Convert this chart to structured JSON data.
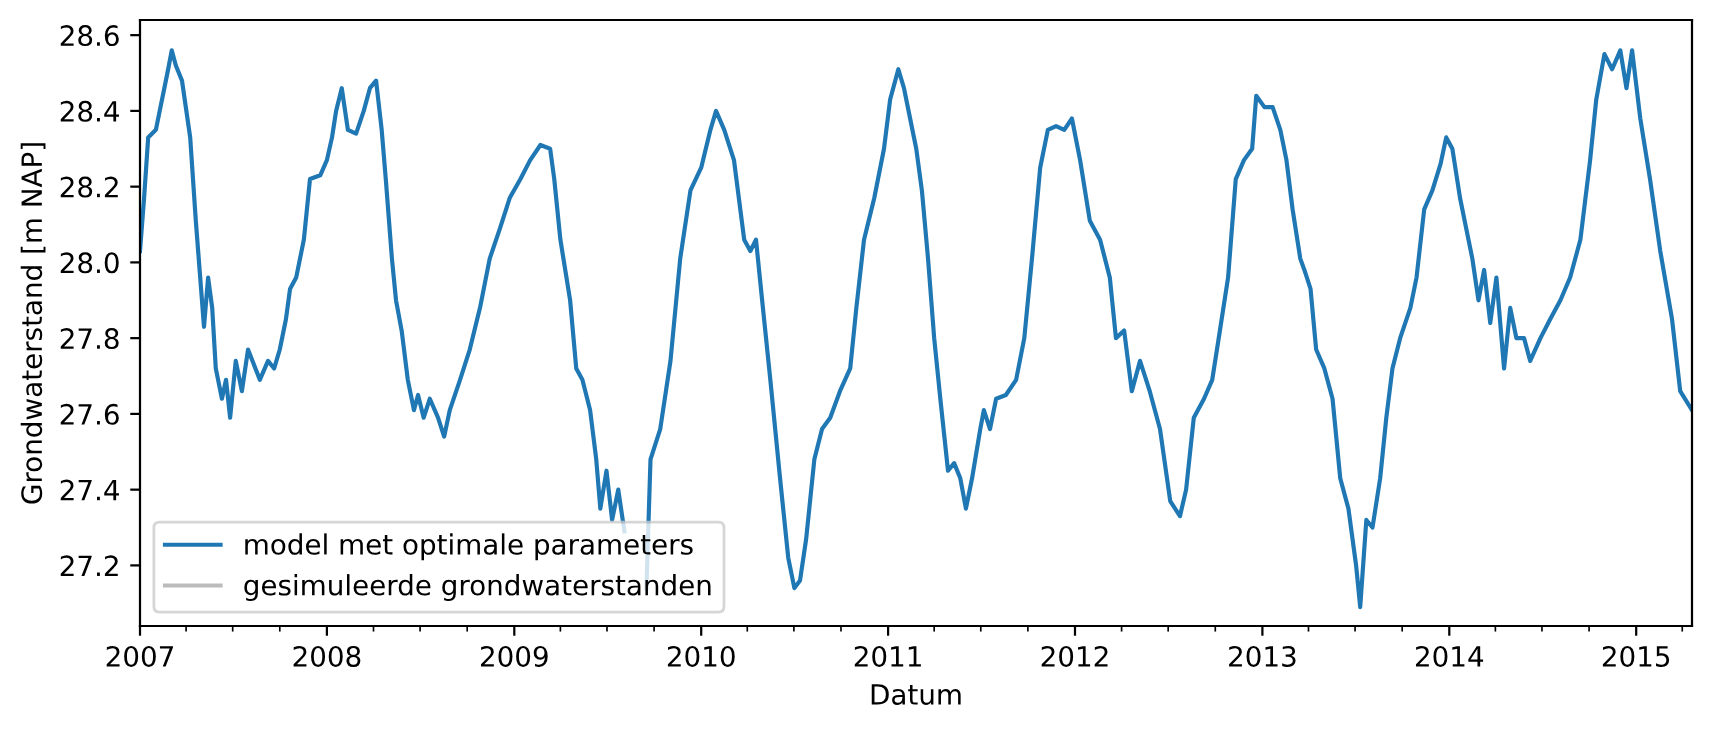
{
  "chart_data": {
    "type": "line",
    "xlabel": "Datum",
    "ylabel": "Grondwaterstand [m NAP]",
    "xlim": [
      "2007-01-01",
      "2015-04-20"
    ],
    "xticks": [
      "2007",
      "2008",
      "2009",
      "2010",
      "2011",
      "2012",
      "2013",
      "2014",
      "2015"
    ],
    "ylim": [
      27.04,
      28.64
    ],
    "yticks": [
      27.2,
      27.4,
      27.6,
      27.8,
      {
        "value": 28.0,
        "label": "28.0"
      },
      28.2,
      28.4,
      28.6
    ],
    "grid": false,
    "legend": "bottom left",
    "x": [
      "2007-01-01",
      "2007-01-09",
      "2007-01-17",
      "2007-02-01",
      "2007-02-25",
      "2007-03-04",
      "2007-03-12",
      "2007-03-24",
      "2007-04-09",
      "2007-04-20",
      "2007-05-06",
      "2007-05-14",
      "2007-05-22",
      "2007-05-29",
      "2007-06-10",
      "2007-06-18",
      "2007-06-26",
      "2007-07-07",
      "2007-07-19",
      "2007-07-31",
      "2007-08-23",
      "2007-09-08",
      "2007-09-20",
      "2007-10-01",
      "2007-10-13",
      "2007-10-21",
      "2007-11-02",
      "2007-11-17",
      "2007-11-29",
      "2007-12-19",
      "2008-01-01",
      "2008-01-11",
      "2008-01-19",
      "2008-01-30",
      "2008-02-11",
      "2008-02-27",
      "2008-03-13",
      "2008-03-25",
      "2008-04-06",
      "2008-04-17",
      "2008-04-25",
      "2008-05-07",
      "2008-05-15",
      "2008-05-26",
      "2008-06-07",
      "2008-06-19",
      "2008-06-27",
      "2008-07-08",
      "2008-07-20",
      "2008-08-05",
      "2008-08-17",
      "2008-08-28",
      "2008-09-17",
      "2008-10-06",
      "2008-10-26",
      "2008-11-14",
      "2008-12-04",
      "2008-12-23",
      "2009-01-13",
      "2009-02-01",
      "2009-02-21",
      "2009-03-12",
      "2009-03-20",
      "2009-04-01",
      "2009-04-20",
      "2009-05-02",
      "2009-05-14",
      "2009-05-29",
      "2009-06-10",
      "2009-06-18",
      "2009-06-30",
      "2009-07-11",
      "2009-07-23",
      "2009-08-04",
      "2009-08-20",
      "2009-09-04",
      "2009-09-16",
      "2009-09-24",
      "2009-10-13",
      "2009-11-02",
      "2009-11-21",
      "2009-12-11",
      "2010-01-01",
      "2010-01-19",
      "2010-01-30",
      "2010-02-15",
      "2010-03-06",
      "2010-03-26",
      "2010-04-07",
      "2010-04-18",
      "2010-04-30",
      "2010-05-16",
      "2010-06-04",
      "2010-06-20",
      "2010-07-02",
      "2010-07-13",
      "2010-07-25",
      "2010-08-10",
      "2010-08-25",
      "2010-09-10",
      "2010-09-29",
      "2010-10-19",
      "2010-10-31",
      "2010-11-15",
      "2010-12-05",
      "2010-12-24",
      "2011-01-05",
      "2011-01-21",
      "2011-02-01",
      "2011-02-13",
      "2011-02-25",
      "2011-03-08",
      "2011-03-20",
      "2011-04-01",
      "2011-04-13",
      "2011-04-28",
      "2011-05-10",
      "2011-05-22",
      "2011-06-02",
      "2011-06-14",
      "2011-06-30",
      "2011-07-07",
      "2011-07-19",
      "2011-07-31",
      "2011-08-19",
      "2011-09-08",
      "2011-09-24",
      "2011-10-09",
      "2011-10-25",
      "2011-11-09",
      "2011-11-25",
      "2011-12-11",
      "2011-12-26",
      "2012-01-11",
      "2012-01-30",
      "2012-02-19",
      "2012-03-09",
      "2012-03-21",
      "2012-04-06",
      "2012-04-21",
      "2012-05-07",
      "2012-05-26",
      "2012-06-15",
      "2012-07-05",
      "2012-07-24",
      "2012-08-05",
      "2012-08-20",
      "2012-09-09",
      "2012-09-25",
      "2012-10-10",
      "2012-10-26",
      "2012-11-10",
      "2012-11-26",
      "2012-12-12",
      "2012-12-20",
      "2013-01-05",
      "2013-01-21",
      "2013-02-05",
      "2013-02-17",
      "2013-03-01",
      "2013-03-16",
      "2013-03-24",
      "2013-04-05",
      "2013-04-16",
      "2013-05-02",
      "2013-05-18",
      "2013-06-02",
      "2013-06-18",
      "2013-06-26",
      "2013-07-03",
      "2013-07-11",
      "2013-07-23",
      "2013-08-04",
      "2013-08-19",
      "2013-08-31",
      "2013-09-12",
      "2013-09-27",
      "2013-10-17",
      "2013-10-29",
      "2013-11-13",
      "2013-11-29",
      "2013-12-15",
      "2013-12-26",
      "2014-01-07",
      "2014-01-22",
      "2014-02-03",
      "2014-02-15",
      "2014-02-27",
      "2014-03-10",
      "2014-03-22",
      "2014-04-03",
      "2014-04-18",
      "2014-04-30",
      "2014-05-12",
      "2014-05-27",
      "2014-06-08",
      "2014-06-28",
      "2014-07-17",
      "2014-08-06",
      "2014-08-25",
      "2014-09-14",
      "2014-10-03",
      "2014-10-15",
      "2014-10-31",
      "2014-11-15",
      "2014-12-01",
      "2014-12-13",
      "2014-12-24",
      "2015-01-09",
      "2015-01-28",
      "2015-02-17",
      "2015-03-12",
      "2015-03-28",
      "2015-04-20"
    ],
    "series": [
      {
        "name": "model met optimale parameters",
        "color": "#1f77b4",
        "values": [
          28.03,
          28.17,
          28.33,
          28.35,
          28.51,
          28.56,
          28.52,
          28.48,
          28.33,
          28.11,
          27.83,
          27.96,
          27.88,
          27.72,
          27.64,
          27.69,
          27.59,
          27.74,
          27.66,
          27.77,
          27.69,
          27.74,
          27.72,
          27.77,
          27.85,
          27.93,
          27.96,
          28.06,
          28.22,
          28.23,
          28.27,
          28.33,
          28.4,
          28.46,
          28.35,
          28.34,
          28.4,
          28.46,
          28.48,
          28.35,
          28.22,
          28.01,
          27.9,
          27.82,
          27.69,
          27.61,
          27.65,
          27.59,
          27.64,
          27.59,
          27.54,
          27.61,
          27.69,
          27.77,
          27.88,
          28.01,
          28.09,
          28.17,
          28.22,
          28.27,
          28.31,
          28.3,
          28.22,
          28.06,
          27.9,
          27.72,
          27.69,
          27.61,
          27.48,
          27.35,
          27.45,
          27.32,
          27.4,
          27.29,
          null,
          null,
          27.14,
          27.48,
          27.56,
          27.74,
          28.01,
          28.19,
          28.25,
          28.35,
          28.4,
          28.35,
          28.27,
          28.06,
          28.03,
          28.06,
          27.9,
          27.69,
          27.43,
          27.22,
          27.14,
          27.16,
          27.27,
          27.48,
          27.56,
          27.59,
          27.66,
          27.72,
          27.88,
          28.06,
          28.17,
          28.3,
          28.43,
          28.51,
          28.46,
          28.38,
          28.3,
          28.19,
          28.01,
          27.8,
          27.64,
          27.45,
          27.47,
          27.43,
          27.35,
          27.43,
          27.56,
          27.61,
          27.56,
          27.64,
          27.65,
          27.69,
          27.8,
          28.01,
          28.25,
          28.35,
          28.36,
          28.35,
          28.38,
          28.27,
          28.11,
          28.06,
          27.96,
          27.8,
          27.82,
          27.66,
          27.74,
          27.66,
          27.56,
          27.37,
          27.33,
          27.4,
          27.59,
          27.64,
          27.69,
          27.82,
          27.96,
          28.22,
          28.27,
          28.3,
          28.44,
          28.41,
          28.41,
          28.35,
          28.27,
          28.14,
          28.01,
          27.98,
          27.93,
          27.77,
          27.72,
          27.64,
          27.43,
          27.35,
          27.27,
          27.2,
          27.09,
          27.32,
          27.3,
          27.43,
          27.59,
          27.72,
          27.8,
          27.88,
          27.96,
          28.14,
          28.19,
          28.26,
          28.33,
          28.3,
          28.17,
          28.09,
          28.01,
          27.9,
          27.98,
          27.84,
          27.96,
          27.72,
          27.88,
          27.8,
          27.8,
          27.74,
          27.8,
          27.85,
          27.9,
          27.96,
          28.06,
          28.27,
          28.43,
          28.55,
          28.51,
          28.56,
          28.46,
          28.56,
          28.38,
          28.22,
          28.03,
          27.85,
          27.66,
          27.61
        ]
      },
      {
        "name": "gesimuleerde grondwaterstanden",
        "color": "#bbbbbb",
        "values": [
          null,
          null,
          null,
          null,
          null,
          null,
          null,
          null,
          null,
          null,
          null,
          null,
          null,
          null,
          null,
          null,
          null,
          null,
          null,
          null,
          null,
          null,
          null,
          null,
          null,
          null,
          null,
          null,
          null,
          null,
          null,
          null,
          null,
          null,
          null,
          null,
          null,
          null,
          null,
          null,
          null,
          null,
          null,
          null,
          null,
          null,
          null,
          null,
          null,
          null,
          null,
          null,
          null,
          null,
          null,
          null,
          null,
          null,
          null,
          null,
          null,
          null,
          null,
          null,
          null,
          null,
          null,
          null,
          null,
          null,
          null,
          null,
          null,
          null,
          null,
          null,
          null,
          null,
          null,
          null,
          null,
          null,
          null,
          null,
          null,
          null,
          null,
          null,
          null,
          null,
          null,
          null,
          null,
          null,
          null,
          null,
          null,
          null,
          null,
          null,
          null,
          null,
          null,
          null,
          null,
          null,
          null,
          null,
          null,
          null,
          null,
          null,
          null,
          null,
          null,
          null,
          null,
          null,
          null,
          null,
          null,
          null,
          null,
          null,
          null,
          null,
          null,
          null,
          null,
          null,
          null,
          null,
          null,
          null,
          null,
          null,
          null,
          null,
          null,
          null,
          null,
          null,
          null,
          null,
          null,
          null,
          null,
          null,
          null,
          null,
          null,
          null,
          null,
          null,
          null,
          null,
          null,
          null,
          null,
          null,
          null,
          null,
          null,
          null,
          null,
          null,
          null,
          null,
          null,
          null,
          null,
          null,
          null,
          null,
          null,
          null,
          null,
          null,
          null,
          null,
          null,
          null,
          null,
          null,
          null,
          null,
          null,
          null,
          null,
          null,
          null,
          null,
          null,
          null,
          null,
          null,
          null,
          null,
          null,
          null,
          null,
          null,
          null,
          null,
          null,
          null,
          null,
          null,
          null,
          null,
          null,
          null,
          null,
          null
        ]
      }
    ]
  }
}
